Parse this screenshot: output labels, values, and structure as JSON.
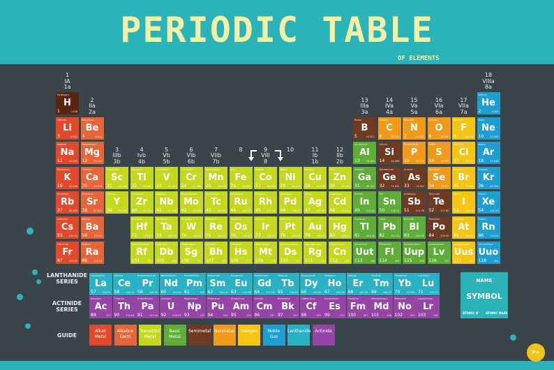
{
  "header": {
    "title": "PERIODIC TABLE",
    "subtitle": "OF ELEMENTS"
  },
  "groups": [
    [
      "1",
      "IA",
      "1a"
    ],
    [
      "2",
      "IIa",
      "2a"
    ],
    [
      "3",
      "IIIb",
      "3b"
    ],
    [
      "4",
      "Ivb",
      "4b"
    ],
    [
      "5",
      "Vb",
      "5b"
    ],
    [
      "6",
      "VIb",
      "6b"
    ],
    [
      "7",
      "VIIb",
      "7b"
    ],
    [
      "8",
      "",
      ""
    ],
    [
      "9",
      "VIII",
      "8"
    ],
    [
      "10",
      "",
      ""
    ],
    [
      "11",
      "Ib",
      "1b"
    ],
    [
      "12",
      "IIb",
      "2b"
    ],
    [
      "13",
      "IIIa",
      "3a"
    ],
    [
      "14",
      "IVa",
      "4a"
    ],
    [
      "15",
      "Va",
      "5a"
    ],
    [
      "16",
      "VIa",
      "6a"
    ],
    [
      "17",
      "VIIa",
      "7a"
    ],
    [
      "18",
      "VIIIa",
      "8a"
    ]
  ],
  "colors": {
    "alkali": "#e2492b",
    "alkaline": "#e7653b",
    "transition": "#c4d81e",
    "basic": "#5fad36",
    "semimetal": "#6f3a22",
    "nonmetal": "#f09a1c",
    "halogen": "#f5c514",
    "noble": "#1f9fd1",
    "lanthanide": "#28b2c4",
    "actinide": "#9545a6",
    "hydrogen": "#5a2510"
  },
  "elements": [
    {
      "n": 1,
      "s": "H",
      "name": "Hydrogen",
      "m": "1.008",
      "c": "hydrogen",
      "col": 1,
      "row": 1
    },
    {
      "n": 2,
      "s": "He",
      "name": "Helium",
      "m": "4.003",
      "c": "noble",
      "col": 18,
      "row": 1
    },
    {
      "n": 3,
      "s": "Li",
      "name": "Lithium",
      "m": "6.941",
      "c": "alkali",
      "col": 1,
      "row": 2
    },
    {
      "n": 4,
      "s": "Be",
      "name": "Beryllium",
      "m": "9.012",
      "c": "alkaline",
      "col": 2,
      "row": 2
    },
    {
      "n": 5,
      "s": "B",
      "name": "Boron",
      "m": "10.811",
      "c": "semimetal",
      "col": 13,
      "row": 2
    },
    {
      "n": 6,
      "s": "C",
      "name": "Carbon",
      "m": "12.011",
      "c": "nonmetal",
      "col": 14,
      "row": 2
    },
    {
      "n": 7,
      "s": "N",
      "name": "Nitrogen",
      "m": "14.007",
      "c": "nonmetal",
      "col": 15,
      "row": 2
    },
    {
      "n": 8,
      "s": "O",
      "name": "Oxygen",
      "m": "15.999",
      "c": "nonmetal",
      "col": 16,
      "row": 2
    },
    {
      "n": 9,
      "s": "F",
      "name": "Fluorine",
      "m": "18.998",
      "c": "halogen",
      "col": 17,
      "row": 2
    },
    {
      "n": 10,
      "s": "Ne",
      "name": "Neon",
      "m": "20.180",
      "c": "noble",
      "col": 18,
      "row": 2
    },
    {
      "n": 11,
      "s": "Na",
      "name": "Sodium",
      "m": "22.990",
      "c": "alkali",
      "col": 1,
      "row": 3
    },
    {
      "n": 12,
      "s": "Mg",
      "name": "Magnesium",
      "m": "24.305",
      "c": "alkaline",
      "col": 2,
      "row": 3
    },
    {
      "n": 13,
      "s": "Al",
      "name": "Aluminium",
      "m": "26.982",
      "c": "basic",
      "col": 13,
      "row": 3
    },
    {
      "n": 14,
      "s": "Si",
      "name": "Silicon",
      "m": "28.086",
      "c": "semimetal",
      "col": 14,
      "row": 3
    },
    {
      "n": 15,
      "s": "P",
      "name": "Phosphorus",
      "m": "30.974",
      "c": "nonmetal",
      "col": 15,
      "row": 3
    },
    {
      "n": 16,
      "s": "S",
      "name": "Sulfur",
      "m": "32.065",
      "c": "nonmetal",
      "col": 16,
      "row": 3
    },
    {
      "n": 17,
      "s": "Cl",
      "name": "Chlorine",
      "m": "35.453",
      "c": "halogen",
      "col": 17,
      "row": 3
    },
    {
      "n": 18,
      "s": "Ar",
      "name": "Argon",
      "m": "39.948",
      "c": "noble",
      "col": 18,
      "row": 3
    },
    {
      "n": 19,
      "s": "K",
      "name": "Potassium",
      "m": "39.098",
      "c": "alkali",
      "col": 1,
      "row": 4
    },
    {
      "n": 20,
      "s": "Ca",
      "name": "Calcium",
      "m": "40.078",
      "c": "alkaline",
      "col": 2,
      "row": 4
    },
    {
      "n": 21,
      "s": "Sc",
      "name": "Scandium",
      "m": "44.956",
      "c": "transition",
      "col": 3,
      "row": 4
    },
    {
      "n": 22,
      "s": "Ti",
      "name": "Titanium",
      "m": "47.867",
      "c": "transition",
      "col": 4,
      "row": 4
    },
    {
      "n": 23,
      "s": "V",
      "name": "Vanadium",
      "m": "50.942",
      "c": "transition",
      "col": 5,
      "row": 4
    },
    {
      "n": 24,
      "s": "Cr",
      "name": "Chromium",
      "m": "51.996",
      "c": "transition",
      "col": 6,
      "row": 4
    },
    {
      "n": 25,
      "s": "Mn",
      "name": "Manganese",
      "m": "54.938",
      "c": "transition",
      "col": 7,
      "row": 4
    },
    {
      "n": 26,
      "s": "Fe",
      "name": "Iron",
      "m": "55.845",
      "c": "transition",
      "col": 8,
      "row": 4
    },
    {
      "n": 27,
      "s": "Co",
      "name": "Cobalt",
      "m": "58.933",
      "c": "transition",
      "col": 9,
      "row": 4
    },
    {
      "n": 28,
      "s": "Ni",
      "name": "Nickel",
      "m": "58.693",
      "c": "transition",
      "col": 10,
      "row": 4
    },
    {
      "n": 29,
      "s": "Cu",
      "name": "Copper",
      "m": "63.546",
      "c": "transition",
      "col": 11,
      "row": 4
    },
    {
      "n": 30,
      "s": "Zn",
      "name": "Zinc",
      "m": "65.380",
      "c": "transition",
      "col": 12,
      "row": 4
    },
    {
      "n": 31,
      "s": "Ga",
      "name": "Gallium",
      "m": "69.723",
      "c": "basic",
      "col": 13,
      "row": 4
    },
    {
      "n": 32,
      "s": "Ge",
      "name": "Germanium",
      "m": "72.631",
      "c": "semimetal",
      "col": 14,
      "row": 4
    },
    {
      "n": 33,
      "s": "As",
      "name": "Arsenic",
      "m": "74.922",
      "c": "semimetal",
      "col": 15,
      "row": 4
    },
    {
      "n": 34,
      "s": "Se",
      "name": "Selenium",
      "m": "78.971",
      "c": "nonmetal",
      "col": 16,
      "row": 4
    },
    {
      "n": 35,
      "s": "Br",
      "name": "Bromine",
      "m": "79.904",
      "c": "halogen",
      "col": 17,
      "row": 4
    },
    {
      "n": 36,
      "s": "Kr",
      "name": "Krypton",
      "m": "83.798",
      "c": "noble",
      "col": 18,
      "row": 4
    },
    {
      "n": 37,
      "s": "Rb",
      "name": "Rubidium",
      "m": "85.468",
      "c": "alkali",
      "col": 1,
      "row": 5
    },
    {
      "n": 38,
      "s": "Sr",
      "name": "Strontium",
      "m": "87.620",
      "c": "alkaline",
      "col": 2,
      "row": 5
    },
    {
      "n": 39,
      "s": "Y",
      "name": "Yttrium",
      "m": "88.906",
      "c": "transition",
      "col": 3,
      "row": 5
    },
    {
      "n": 40,
      "s": "Zr",
      "name": "Zirconium",
      "m": "91.224",
      "c": "transition",
      "col": 4,
      "row": 5
    },
    {
      "n": 41,
      "s": "Nb",
      "name": "Niobium",
      "m": "92.906",
      "c": "transition",
      "col": 5,
      "row": 5
    },
    {
      "n": 42,
      "s": "Mo",
      "name": "Molybdenum",
      "m": "95.950",
      "c": "transition",
      "col": 6,
      "row": 5
    },
    {
      "n": 43,
      "s": "Tc",
      "name": "Technetium",
      "m": "98.000",
      "c": "transition",
      "col": 7,
      "row": 5
    },
    {
      "n": 44,
      "s": "Ru",
      "name": "Ruthenium",
      "m": "101.07",
      "c": "transition",
      "col": 8,
      "row": 5
    },
    {
      "n": 45,
      "s": "Rh",
      "name": "Rhodium",
      "m": "102.91",
      "c": "transition",
      "col": 9,
      "row": 5
    },
    {
      "n": 46,
      "s": "Pd",
      "name": "Palladium",
      "m": "106.42",
      "c": "transition",
      "col": 10,
      "row": 5
    },
    {
      "n": 47,
      "s": "Ag",
      "name": "Silver",
      "m": "107.87",
      "c": "transition",
      "col": 11,
      "row": 5
    },
    {
      "n": 48,
      "s": "Cd",
      "name": "Cadmium",
      "m": "112.41",
      "c": "transition",
      "col": 12,
      "row": 5
    },
    {
      "n": 49,
      "s": "In",
      "name": "Indium",
      "m": "114.82",
      "c": "basic",
      "col": 13,
      "row": 5
    },
    {
      "n": 50,
      "s": "Sn",
      "name": "Tin",
      "m": "118.71",
      "c": "basic",
      "col": 14,
      "row": 5
    },
    {
      "n": 51,
      "s": "Sb",
      "name": "Antimony",
      "m": "121.76",
      "c": "semimetal",
      "col": 15,
      "row": 5
    },
    {
      "n": 52,
      "s": "Te",
      "name": "Tellurium",
      "m": "127.60",
      "c": "semimetal",
      "col": 16,
      "row": 5
    },
    {
      "n": 53,
      "s": "I",
      "name": "Iodine",
      "m": "126.90",
      "c": "halogen",
      "col": 17,
      "row": 5
    },
    {
      "n": 54,
      "s": "Xe",
      "name": "Xenon",
      "m": "131.29",
      "c": "noble",
      "col": 18,
      "row": 5
    },
    {
      "n": 55,
      "s": "Cs",
      "name": "Caesium",
      "m": "132.91",
      "c": "alkali",
      "col": 1,
      "row": 6
    },
    {
      "n": 56,
      "s": "Ba",
      "name": "Barium",
      "m": "137.33",
      "c": "alkaline",
      "col": 2,
      "row": 6
    },
    {
      "n": 72,
      "s": "Hf",
      "name": "Hafnium",
      "m": "178.49",
      "c": "transition",
      "col": 4,
      "row": 6
    },
    {
      "n": 73,
      "s": "Ta",
      "name": "Tantalum",
      "m": "180.95",
      "c": "transition",
      "col": 5,
      "row": 6
    },
    {
      "n": 74,
      "s": "W",
      "name": "Tungsten",
      "m": "183.84",
      "c": "transition",
      "col": 6,
      "row": 6
    },
    {
      "n": 75,
      "s": "Re",
      "name": "Rhenium",
      "m": "186.21",
      "c": "transition",
      "col": 7,
      "row": 6
    },
    {
      "n": 76,
      "s": "Os",
      "name": "Osmium",
      "m": "190.23",
      "c": "transition",
      "col": 8,
      "row": 6
    },
    {
      "n": 77,
      "s": "Ir",
      "name": "Iridium",
      "m": "192.22",
      "c": "transition",
      "col": 9,
      "row": 6
    },
    {
      "n": 78,
      "s": "Pt",
      "name": "Platinum",
      "m": "195.08",
      "c": "transition",
      "col": 10,
      "row": 6
    },
    {
      "n": 79,
      "s": "Au",
      "name": "Gold",
      "m": "196.97",
      "c": "transition",
      "col": 11,
      "row": 6
    },
    {
      "n": 80,
      "s": "Hg",
      "name": "Mercury",
      "m": "200.59",
      "c": "transition",
      "col": 12,
      "row": 6
    },
    {
      "n": 81,
      "s": "Tl",
      "name": "Thallium",
      "m": "204.38",
      "c": "basic",
      "col": 13,
      "row": 6
    },
    {
      "n": 82,
      "s": "Pb",
      "name": "Lead",
      "m": "207.20",
      "c": "basic",
      "col": 14,
      "row": 6
    },
    {
      "n": 83,
      "s": "Bi",
      "name": "Bismuth",
      "m": "208.98",
      "c": "basic",
      "col": 15,
      "row": 6
    },
    {
      "n": 84,
      "s": "Po",
      "name": "Polonium",
      "m": "209.00",
      "c": "semimetal",
      "col": 16,
      "row": 6
    },
    {
      "n": 85,
      "s": "At",
      "name": "Astatine",
      "m": "210.00",
      "c": "halogen",
      "col": 17,
      "row": 6
    },
    {
      "n": 86,
      "s": "Rn",
      "name": "Radon",
      "m": "222.00",
      "c": "noble",
      "col": 18,
      "row": 6
    },
    {
      "n": 87,
      "s": "Fr",
      "name": "Francium",
      "m": "223.00",
      "c": "alkali",
      "col": 1,
      "row": 7
    },
    {
      "n": 88,
      "s": "Ra",
      "name": "Radium",
      "m": "226.00",
      "c": "alkaline",
      "col": 2,
      "row": 7
    },
    {
      "n": 104,
      "s": "Rf",
      "name": "Rutherfordium",
      "m": "267",
      "c": "transition",
      "col": 4,
      "row": 7
    },
    {
      "n": 105,
      "s": "Db",
      "name": "Dubnium",
      "m": "268",
      "c": "transition",
      "col": 5,
      "row": 7
    },
    {
      "n": 106,
      "s": "Sg",
      "name": "Seaborgium",
      "m": "269",
      "c": "transition",
      "col": 6,
      "row": 7
    },
    {
      "n": 107,
      "s": "Bh",
      "name": "Bohrium",
      "m": "270",
      "c": "transition",
      "col": 7,
      "row": 7
    },
    {
      "n": 108,
      "s": "Hs",
      "name": "Hassium",
      "m": "277",
      "c": "transition",
      "col": 8,
      "row": 7
    },
    {
      "n": 109,
      "s": "Mt",
      "name": "Meitnerium",
      "m": "278",
      "c": "transition",
      "col": 9,
      "row": 7
    },
    {
      "n": 110,
      "s": "Ds",
      "name": "Darmstadtium",
      "m": "281",
      "c": "transition",
      "col": 10,
      "row": 7
    },
    {
      "n": 111,
      "s": "Rg",
      "name": "Roentgenium",
      "m": "282",
      "c": "transition",
      "col": 11,
      "row": 7
    },
    {
      "n": 112,
      "s": "Cn",
      "name": "Copernicium",
      "m": "285",
      "c": "transition",
      "col": 12,
      "row": 7
    },
    {
      "n": 113,
      "s": "Uut",
      "name": "Ununtrium",
      "m": "286",
      "c": "basic",
      "col": 13,
      "row": 7
    },
    {
      "n": 114,
      "s": "Fl",
      "name": "Flerovium",
      "m": "289",
      "c": "basic",
      "col": 14,
      "row": 7
    },
    {
      "n": 115,
      "s": "Uup",
      "name": "Ununpentium",
      "m": "289",
      "c": "basic",
      "col": 15,
      "row": 7
    },
    {
      "n": 116,
      "s": "Lv",
      "name": "Livermorium",
      "m": "293",
      "c": "basic",
      "col": 16,
      "row": 7
    },
    {
      "n": 117,
      "s": "Uus",
      "name": "Ununseptium",
      "m": "294",
      "c": "halogen",
      "col": 17,
      "row": 7
    },
    {
      "n": 118,
      "s": "Uuo",
      "name": "Ununoctium",
      "m": "294",
      "c": "noble",
      "col": 18,
      "row": 7
    }
  ],
  "lanthanides": [
    {
      "n": 57,
      "s": "La",
      "name": "Lanthanum",
      "m": "138.91"
    },
    {
      "n": 58,
      "s": "Ce",
      "name": "Cerium",
      "m": "140.12"
    },
    {
      "n": 59,
      "s": "Pr",
      "name": "Praseodymium",
      "m": "140.91"
    },
    {
      "n": 60,
      "s": "Nd",
      "name": "Neodymium",
      "m": "144.24"
    },
    {
      "n": 61,
      "s": "Pm",
      "name": "Promethium",
      "m": "145"
    },
    {
      "n": 62,
      "s": "Sm",
      "name": "Samarium",
      "m": "150.36"
    },
    {
      "n": 63,
      "s": "Eu",
      "name": "Europium",
      "m": "151.96"
    },
    {
      "n": 64,
      "s": "Gd",
      "name": "Gadolinium",
      "m": "157.25"
    },
    {
      "n": 65,
      "s": "Tb",
      "name": "Terbium",
      "m": "158.93"
    },
    {
      "n": 66,
      "s": "Dy",
      "name": "Dysprosium",
      "m": "162.50"
    },
    {
      "n": 67,
      "s": "Ho",
      "name": "Holmium",
      "m": "164.93"
    },
    {
      "n": 68,
      "s": "Er",
      "name": "Erbium",
      "m": "167.26"
    },
    {
      "n": 69,
      "s": "Tm",
      "name": "Thulium",
      "m": "168.93"
    },
    {
      "n": 70,
      "s": "Yb",
      "name": "Ytterbium",
      "m": "173.05"
    },
    {
      "n": 71,
      "s": "Lu",
      "name": "Lutetium",
      "m": "174.97"
    }
  ],
  "actinides": [
    {
      "n": 89,
      "s": "Ac",
      "name": "Actinium",
      "m": "227"
    },
    {
      "n": 90,
      "s": "Th",
      "name": "Thorium",
      "m": "232.04"
    },
    {
      "n": 91,
      "s": "Pa",
      "name": "Protactinium",
      "m": "231.04"
    },
    {
      "n": 92,
      "s": "U",
      "name": "Uranium",
      "m": "238.03"
    },
    {
      "n": 93,
      "s": "Np",
      "name": "Neptunium",
      "m": "237"
    },
    {
      "n": 94,
      "s": "Pu",
      "name": "Plutonium",
      "m": "244"
    },
    {
      "n": 95,
      "s": "Am",
      "name": "Americium",
      "m": "243"
    },
    {
      "n": 96,
      "s": "Cm",
      "name": "Curium",
      "m": "247"
    },
    {
      "n": 97,
      "s": "Bk",
      "name": "Berkelium",
      "m": "247"
    },
    {
      "n": 98,
      "s": "Cf",
      "name": "Californium",
      "m": "251"
    },
    {
      "n": 99,
      "s": "Es",
      "name": "Einsteinium",
      "m": "252"
    },
    {
      "n": 100,
      "s": "Fm",
      "name": "Fermium",
      "m": "257"
    },
    {
      "n": 101,
      "s": "Md",
      "name": "Mendelevium",
      "m": "258"
    },
    {
      "n": 102,
      "s": "No",
      "name": "Nobelium",
      "m": "259"
    },
    {
      "n": 103,
      "s": "Lr",
      "name": "Lawrencium",
      "m": "262"
    }
  ],
  "series_labels": {
    "lanthanide": [
      "LANTHANIDE",
      "SERIES"
    ],
    "actinide": [
      "ACTINIDE",
      "SERIES"
    ]
  },
  "guide": {
    "label": "GUIDE",
    "items": [
      {
        "label": [
          "Alkali",
          "Metal"
        ],
        "c": "alkali"
      },
      {
        "label": [
          "Alkaline",
          "Earth"
        ],
        "c": "alkaline"
      },
      {
        "label": [
          "Transition",
          "Metal"
        ],
        "c": "transition"
      },
      {
        "label": [
          "Basic",
          "Metal"
        ],
        "c": "basic"
      },
      {
        "label": [
          "Semimetal"
        ],
        "c": "semimetal"
      },
      {
        "label": [
          "Nonmetal"
        ],
        "c": "nonmetal"
      },
      {
        "label": [
          "Halogen"
        ],
        "c": "halogen"
      },
      {
        "label": [
          "Noble",
          "Gas"
        ],
        "c": "noble"
      },
      {
        "label": [
          "Lanthanide"
        ],
        "c": "lanthanide"
      },
      {
        "label": [
          "Actinide"
        ],
        "c": "actinide"
      }
    ]
  },
  "legend": {
    "name": "NAME",
    "symbol": "SYMBOL",
    "atomic_no": "ATOMIC N°",
    "atomic_mass": "ATOMIC MASS"
  },
  "badge": "P+"
}
